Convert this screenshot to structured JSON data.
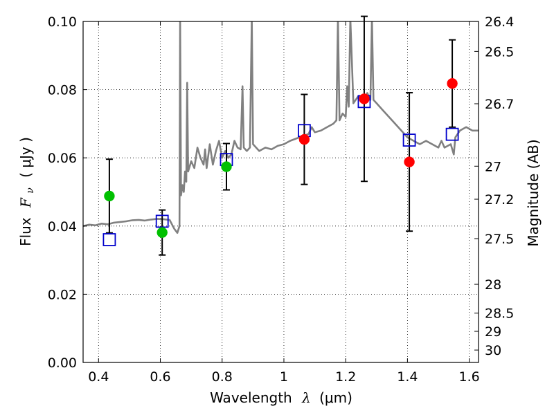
{
  "chart_data": {
    "type": "scatter",
    "xlabel_prefix": "Wavelength",
    "xlabel_symbol": "λ",
    "xlabel_unit": "(μm)",
    "ylabel_prefix": "Flux",
    "ylabel_symbol": "F",
    "ylabel_symbol_sub": "ν",
    "ylabel_unit": "( μJy )",
    "y2label": "Magnitude (AB)",
    "xlim": [
      0.35,
      1.63
    ],
    "ylim": [
      0.0,
      0.1
    ],
    "grid": true,
    "x_ticks": [
      {
        "value": 0.4,
        "label": "0.4"
      },
      {
        "value": 0.6,
        "label": "0.6"
      },
      {
        "value": 0.8,
        "label": "0.8"
      },
      {
        "value": 1.0,
        "label": "1"
      },
      {
        "value": 1.2,
        "label": "1.2"
      },
      {
        "value": 1.4,
        "label": "1.4"
      },
      {
        "value": 1.6,
        "label": "1.6"
      }
    ],
    "y_ticks": [
      {
        "value": 0.0,
        "label": "0.00"
      },
      {
        "value": 0.02,
        "label": "0.02"
      },
      {
        "value": 0.04,
        "label": "0.04"
      },
      {
        "value": 0.06,
        "label": "0.06"
      },
      {
        "value": 0.08,
        "label": "0.08"
      },
      {
        "value": 0.1,
        "label": "0.10"
      }
    ],
    "y2_ticks": [
      {
        "mag": 26.4,
        "label": "26.4"
      },
      {
        "mag": 26.5,
        "label": "26.5"
      },
      {
        "mag": 26.7,
        "label": "26.7"
      },
      {
        "mag": 27.0,
        "label": "27"
      },
      {
        "mag": 27.2,
        "label": "27.2"
      },
      {
        "mag": 27.5,
        "label": "27.5"
      },
      {
        "mag": 28.0,
        "label": "28"
      },
      {
        "mag": 28.5,
        "label": "28.5"
      },
      {
        "mag": 29.0,
        "label": "29"
      },
      {
        "mag": 30.0,
        "label": "30"
      }
    ],
    "observed_points": [
      {
        "x": 0.435,
        "y": 0.0488,
        "yerr": 0.0108,
        "color": "#00c000"
      },
      {
        "x": 0.606,
        "y": 0.0381,
        "yerr": 0.0066,
        "color": "#00c000"
      },
      {
        "x": 0.814,
        "y": 0.0574,
        "yerr": 0.0068,
        "color": "#00c000"
      },
      {
        "x": 1.066,
        "y": 0.0654,
        "yerr": 0.0132,
        "color": "#ff0000"
      },
      {
        "x": 1.26,
        "y": 0.0773,
        "yerr": 0.0242,
        "color": "#ff0000"
      },
      {
        "x": 1.406,
        "y": 0.0588,
        "yerr": 0.0203,
        "color": "#ff0000"
      },
      {
        "x": 1.545,
        "y": 0.0818,
        "yerr": 0.0128,
        "color": "#ff0000"
      }
    ],
    "model_points": [
      {
        "x": 0.435,
        "y": 0.036
      },
      {
        "x": 0.606,
        "y": 0.0414
      },
      {
        "x": 0.814,
        "y": 0.0595
      },
      {
        "x": 1.066,
        "y": 0.068
      },
      {
        "x": 1.26,
        "y": 0.0765
      },
      {
        "x": 1.406,
        "y": 0.0652
      },
      {
        "x": 1.545,
        "y": 0.0669
      }
    ],
    "sed_line": [
      [
        0.35,
        0.04
      ],
      [
        0.37,
        0.0404
      ],
      [
        0.39,
        0.0402
      ],
      [
        0.41,
        0.0407
      ],
      [
        0.43,
        0.0405
      ],
      [
        0.45,
        0.041
      ],
      [
        0.47,
        0.0412
      ],
      [
        0.49,
        0.0414
      ],
      [
        0.51,
        0.0417
      ],
      [
        0.53,
        0.0418
      ],
      [
        0.55,
        0.0416
      ],
      [
        0.57,
        0.0419
      ],
      [
        0.59,
        0.0421
      ],
      [
        0.61,
        0.042
      ],
      [
        0.63,
        0.0418
      ],
      [
        0.645,
        0.0392
      ],
      [
        0.655,
        0.038
      ],
      [
        0.662,
        0.04
      ],
      [
        0.664,
        0.101
      ],
      [
        0.667,
        0.049
      ],
      [
        0.672,
        0.052
      ],
      [
        0.676,
        0.05
      ],
      [
        0.68,
        0.056
      ],
      [
        0.684,
        0.053
      ],
      [
        0.687,
        0.082
      ],
      [
        0.69,
        0.056
      ],
      [
        0.7,
        0.059
      ],
      [
        0.71,
        0.057
      ],
      [
        0.72,
        0.063
      ],
      [
        0.73,
        0.06
      ],
      [
        0.74,
        0.058
      ],
      [
        0.745,
        0.0625
      ],
      [
        0.75,
        0.057
      ],
      [
        0.76,
        0.064
      ],
      [
        0.77,
        0.058
      ],
      [
        0.78,
        0.062
      ],
      [
        0.79,
        0.065
      ],
      [
        0.8,
        0.06
      ],
      [
        0.81,
        0.062
      ],
      [
        0.82,
        0.06
      ],
      [
        0.83,
        0.061
      ],
      [
        0.84,
        0.065
      ],
      [
        0.85,
        0.063
      ],
      [
        0.86,
        0.0625
      ],
      [
        0.866,
        0.081
      ],
      [
        0.87,
        0.063
      ],
      [
        0.88,
        0.062
      ],
      [
        0.89,
        0.063
      ],
      [
        0.896,
        0.101
      ],
      [
        0.9,
        0.064
      ],
      [
        0.92,
        0.062
      ],
      [
        0.94,
        0.063
      ],
      [
        0.96,
        0.0625
      ],
      [
        0.98,
        0.0635
      ],
      [
        1.0,
        0.064
      ],
      [
        1.02,
        0.065
      ],
      [
        1.05,
        0.066
      ],
      [
        1.08,
        0.067
      ],
      [
        1.09,
        0.069
      ],
      [
        1.1,
        0.0675
      ],
      [
        1.12,
        0.068
      ],
      [
        1.14,
        0.069
      ],
      [
        1.16,
        0.07
      ],
      [
        1.17,
        0.071
      ],
      [
        1.175,
        0.101
      ],
      [
        1.18,
        0.071
      ],
      [
        1.19,
        0.073
      ],
      [
        1.2,
        0.072
      ],
      [
        1.205,
        0.081
      ],
      [
        1.21,
        0.075
      ],
      [
        1.215,
        0.101
      ],
      [
        1.225,
        0.076
      ],
      [
        1.24,
        0.078
      ],
      [
        1.26,
        0.0775
      ],
      [
        1.27,
        0.079
      ],
      [
        1.28,
        0.077
      ],
      [
        1.285,
        0.101
      ],
      [
        1.29,
        0.077
      ],
      [
        1.3,
        0.076
      ],
      [
        1.32,
        0.074
      ],
      [
        1.34,
        0.072
      ],
      [
        1.36,
        0.07
      ],
      [
        1.38,
        0.068
      ],
      [
        1.4,
        0.066
      ],
      [
        1.42,
        0.065
      ],
      [
        1.44,
        0.064
      ],
      [
        1.46,
        0.065
      ],
      [
        1.48,
        0.064
      ],
      [
        1.5,
        0.063
      ],
      [
        1.51,
        0.065
      ],
      [
        1.52,
        0.063
      ],
      [
        1.54,
        0.064
      ],
      [
        1.55,
        0.061
      ],
      [
        1.555,
        0.066
      ],
      [
        1.57,
        0.068
      ],
      [
        1.59,
        0.069
      ],
      [
        1.61,
        0.068
      ],
      [
        1.63,
        0.068
      ]
    ],
    "colors": {
      "sed_line": "#808080",
      "model_marker": "#0000cc",
      "error_bar": "#000000",
      "grid": "#000000"
    }
  }
}
